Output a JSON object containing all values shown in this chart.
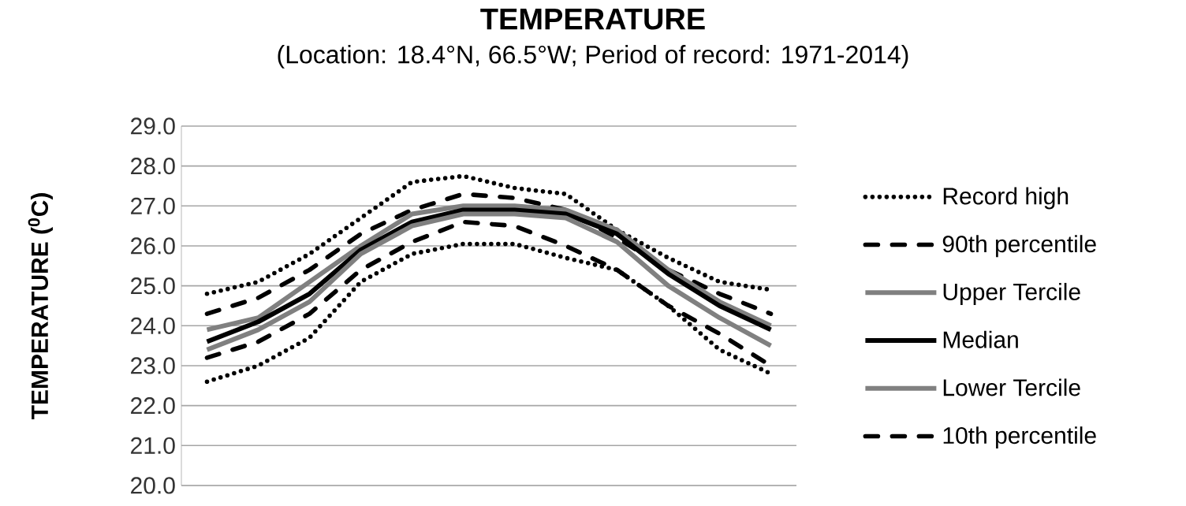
{
  "chart_data": {
    "type": "line",
    "title": "TEMPERATURE",
    "subtitle": "(Location: 18.4°N, 66.5°W; Period of record: 1971-2014)",
    "ylabel": "TEMPERATURE ($^{0}$C)",
    "categories": [
      null,
      null,
      null,
      null,
      null,
      null,
      null,
      null,
      null,
      null,
      null,
      null
    ],
    "series": [
      {
        "name": "Record high",
        "color": "#000000",
        "line_style": "dotted",
        "values": [
          24.8,
          25.1,
          25.8,
          26.7,
          27.6,
          27.75,
          27.45,
          27.3,
          26.4,
          25.7,
          25.1,
          24.9
        ]
      },
      {
        "name": "90th percentile",
        "color": "#000000",
        "line_style": "dashed",
        "values": [
          24.3,
          24.7,
          25.4,
          26.3,
          26.9,
          27.3,
          27.2,
          26.9,
          26.2,
          25.4,
          24.8,
          24.3
        ]
      },
      {
        "name": "Upper Tercile",
        "color": "#808080",
        "line_style": "solid",
        "values": [
          23.9,
          24.2,
          25.1,
          26.0,
          26.8,
          27.0,
          27.0,
          26.9,
          26.4,
          25.4,
          24.6,
          24.0
        ]
      },
      {
        "name": "Median",
        "color": "#000000",
        "line_style": "solid",
        "values": [
          23.6,
          24.1,
          24.8,
          25.9,
          26.6,
          26.9,
          26.9,
          26.8,
          26.3,
          25.3,
          24.5,
          23.9
        ]
      },
      {
        "name": "Lower Tercile",
        "color": "#808080",
        "line_style": "solid",
        "values": [
          23.4,
          23.9,
          24.6,
          25.8,
          26.5,
          26.8,
          26.8,
          26.7,
          26.1,
          25.0,
          24.2,
          23.5
        ]
      },
      {
        "name": "10th percentile",
        "color": "#000000",
        "line_style": "dashed",
        "values": [
          23.2,
          23.6,
          24.3,
          25.4,
          26.1,
          26.6,
          26.5,
          26.0,
          25.4,
          24.5,
          23.8,
          23.0
        ]
      },
      {
        "color": "#000000",
        "line_style": "dotted",
        "values": [
          22.6,
          23.0,
          23.7,
          25.1,
          25.8,
          26.05,
          26.05,
          25.7,
          25.4,
          24.5,
          23.4,
          22.8
        ]
      }
    ],
    "ylim": [
      20,
      29
    ],
    "yticks": [
      {
        "value": 20,
        "label": "20.0"
      },
      {
        "value": 21,
        "label": "21.0"
      },
      {
        "value": 22,
        "label": "22.0"
      },
      {
        "value": 23,
        "label": "23.0"
      },
      {
        "value": 24,
        "label": "24.0"
      },
      {
        "value": 25,
        "label": "25.0"
      },
      {
        "value": 26,
        "label": "26.0"
      },
      {
        "value": 27,
        "label": "27.0"
      },
      {
        "value": 28,
        "label": "28.0"
      },
      {
        "value": 29,
        "label": "29.0"
      }
    ],
    "grid": "y",
    "legend": "right",
    "tick_labels": "y"
  }
}
